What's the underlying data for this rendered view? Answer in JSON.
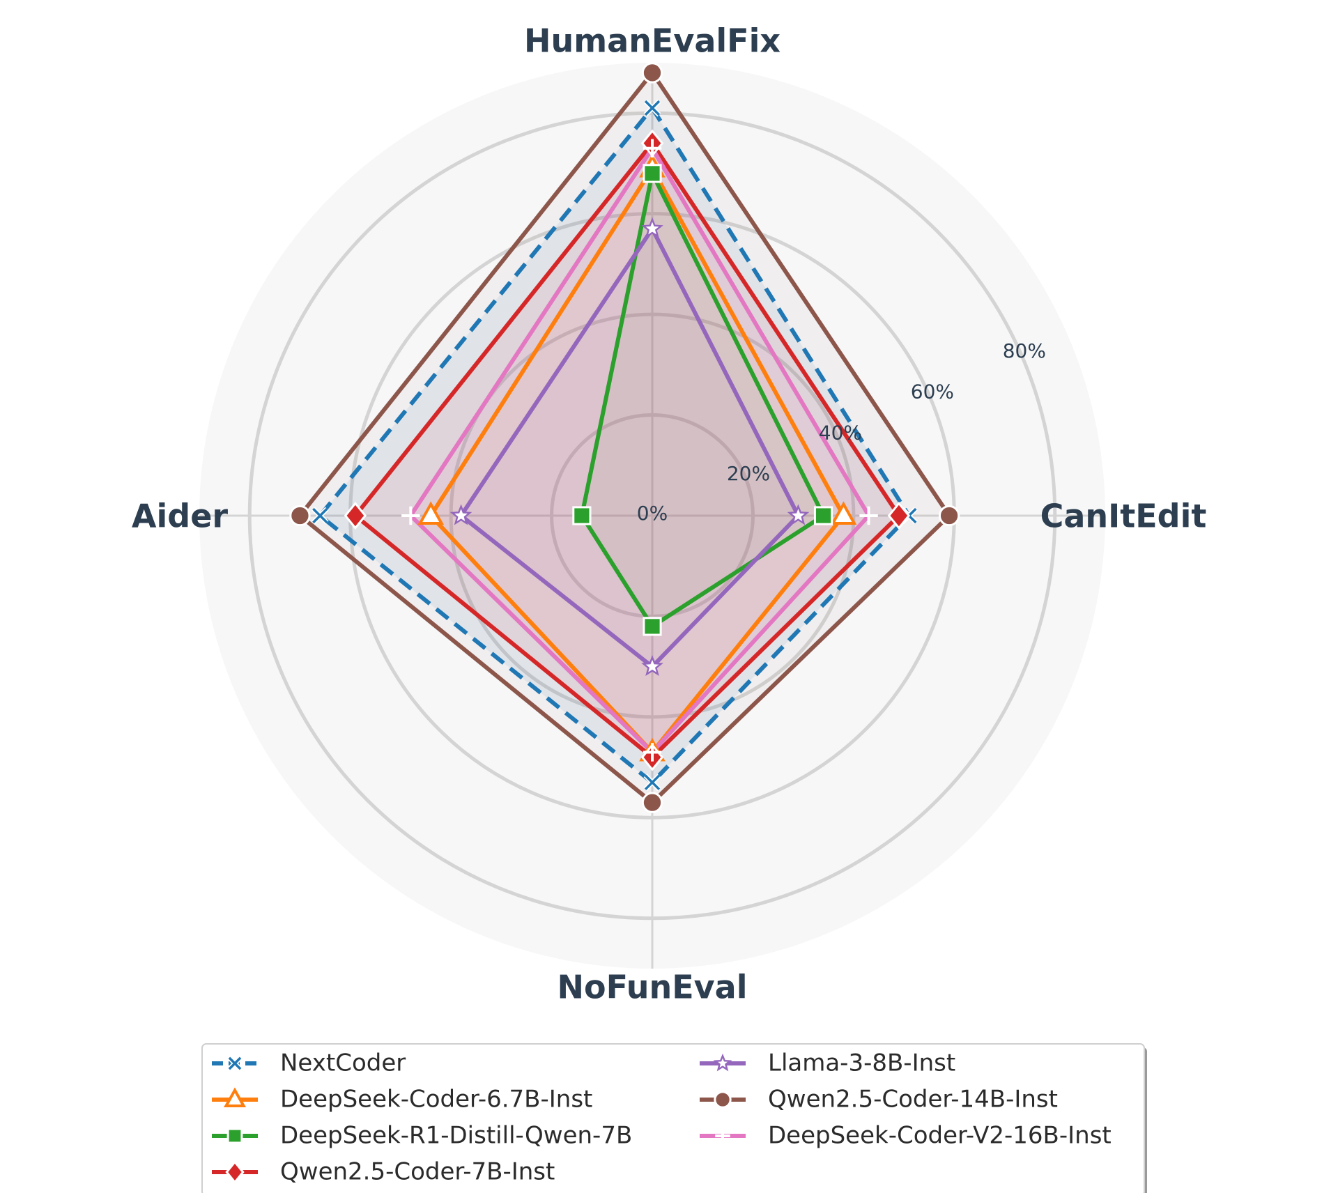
{
  "chart_data": {
    "type": "radar",
    "axes": [
      "HumanEvalFix",
      "CanItEdit",
      "NoFunEval",
      "Aider"
    ],
    "radial_ticks": [
      "0%",
      "20%",
      "40%",
      "60%",
      "80%"
    ],
    "tick_values": [
      0,
      20,
      40,
      60,
      80
    ],
    "rmax": 90,
    "legend_position": "bottom",
    "legend_columns": 2,
    "series": [
      {
        "name": "NextCoder",
        "values": [
          81,
          51,
          53,
          66
        ],
        "color": "#1f77b4",
        "marker": "x",
        "dashed": true,
        "fill": true
      },
      {
        "name": "DeepSeek-Coder-6.7B-Inst",
        "values": [
          69,
          38,
          47,
          44
        ],
        "color": "#ff7f0e",
        "marker": "triangle",
        "dashed": false,
        "fill": false
      },
      {
        "name": "DeepSeek-R1-Distill-Qwen-7B",
        "values": [
          68,
          34,
          22,
          14
        ],
        "color": "#2ca02c",
        "marker": "square",
        "dashed": false,
        "fill": false
      },
      {
        "name": "Qwen2.5-Coder-7B-Inst",
        "values": [
          74,
          49,
          48,
          59
        ],
        "color": "#d62728",
        "marker": "diamond",
        "dashed": false,
        "fill": true
      },
      {
        "name": "Llama-3-8B-Inst",
        "values": [
          57,
          29,
          30,
          38
        ],
        "color": "#9467bd",
        "marker": "star",
        "dashed": false,
        "fill": false
      },
      {
        "name": "Qwen2.5-Coder-14B-Inst",
        "values": [
          88,
          59,
          57,
          70
        ],
        "color": "#8c564b",
        "marker": "circle",
        "dashed": false,
        "fill": false
      },
      {
        "name": "DeepSeek-Coder-V2-16B-Inst",
        "values": [
          73,
          43,
          47,
          48
        ],
        "color": "#e377c2",
        "marker": "plus",
        "dashed": false,
        "fill": true
      }
    ]
  }
}
